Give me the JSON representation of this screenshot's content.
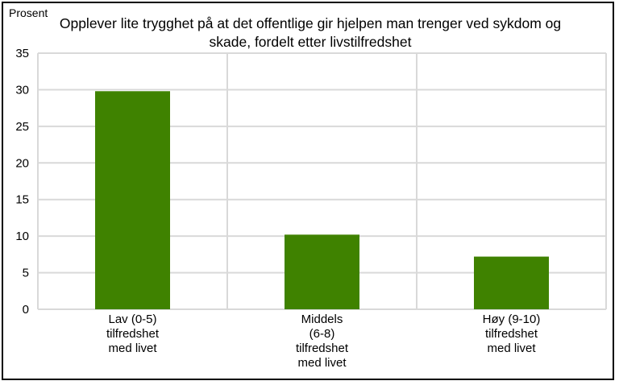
{
  "chart_data": {
    "type": "bar",
    "title": "Opplever lite trygghet på at det offentlige gir hjelpen man trenger ved sykdom og skade, fordelt etter livstilfredshet",
    "ylabel": "Prosent",
    "xlabel": "",
    "categories": [
      "Lav (0-5)\ntilfredshet\nmed livet",
      "Middels\n(6-8)\ntilfredshet\nmed livet",
      "Høy (9-10)\ntilfredshet\nmed livet"
    ],
    "values": [
      29.8,
      10.2,
      7.2
    ],
    "ylim": [
      0,
      35
    ],
    "yticks": [
      "0",
      "5",
      "10",
      "15",
      "20",
      "25",
      "30",
      "35"
    ],
    "grid": true,
    "bar_color": "#3f8200",
    "grid_color": "#d9d9d9"
  }
}
